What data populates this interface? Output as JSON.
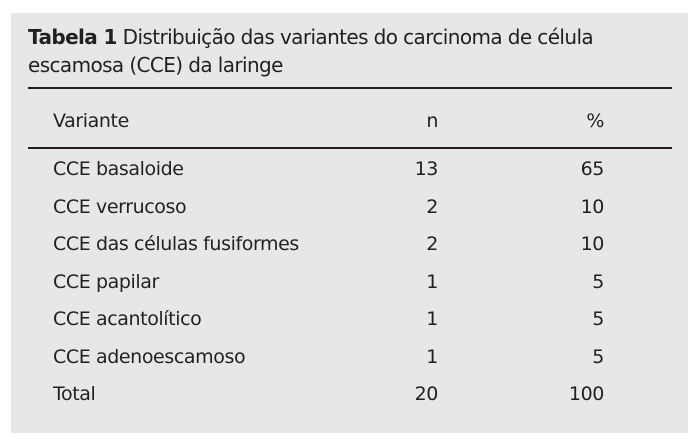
{
  "table": {
    "label": "Tabela 1",
    "caption": "Distribuição das variantes do carcinoma de célula escamosa (CCE) da laringe",
    "columns": [
      "Variante",
      "n",
      "%"
    ],
    "rows": [
      [
        "CCE basaloide",
        "13",
        "65"
      ],
      [
        "CCE verrucoso",
        "2",
        "10"
      ],
      [
        "CCE das células fusiformes",
        "2",
        "10"
      ],
      [
        "CCE papilar",
        "1",
        "5"
      ],
      [
        "CCE acantolítico",
        "1",
        "5"
      ],
      [
        "CCE adenoescamoso",
        "1",
        "5"
      ],
      [
        "Total",
        "20",
        "100"
      ]
    ]
  }
}
